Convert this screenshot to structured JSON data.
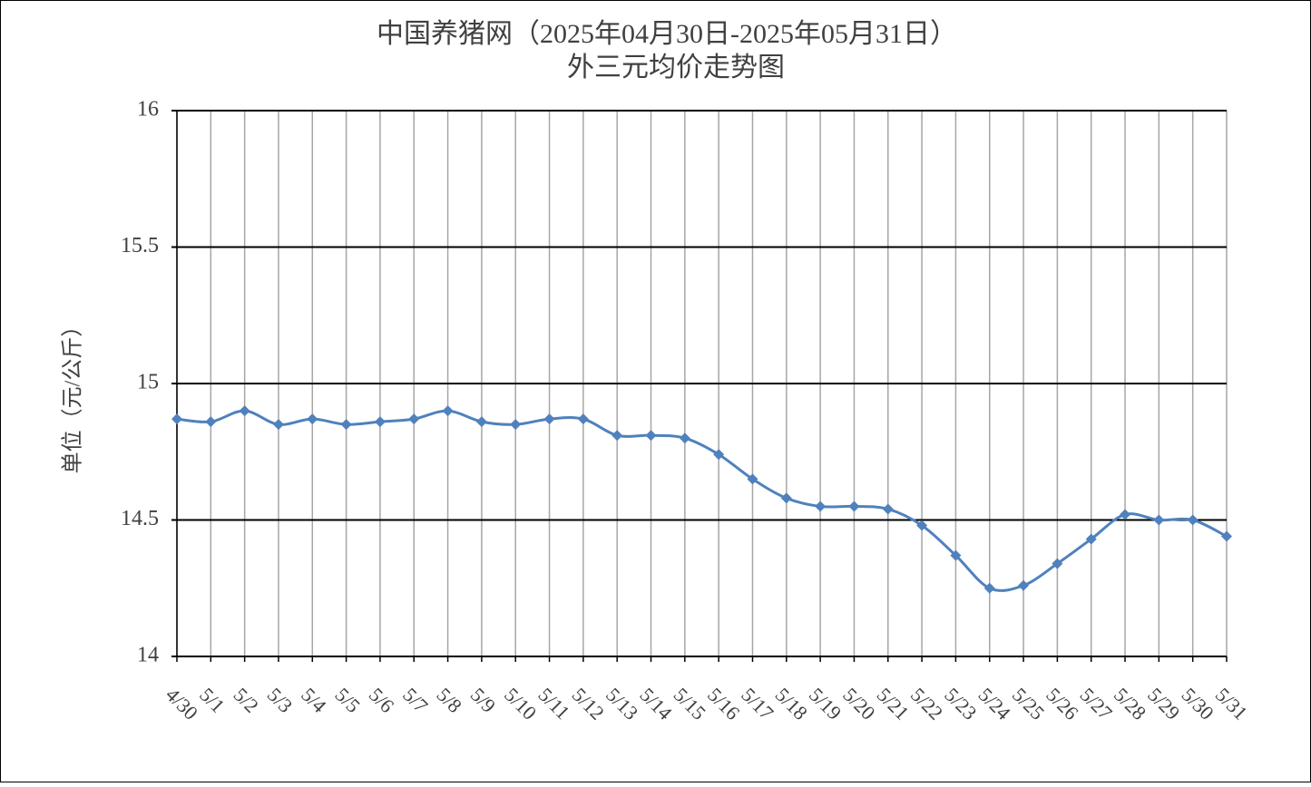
{
  "chart_data": {
    "type": "line",
    "title": "中国养猪网（2025年04月30日-2025年05月31日）",
    "subtitle": "外三元均价走势图",
    "y_label": "单位（元/公斤）",
    "categories": [
      "4/30",
      "5/1",
      "5/2",
      "5/3",
      "5/4",
      "5/5",
      "5/6",
      "5/7",
      "5/8",
      "5/9",
      "5/10",
      "5/11",
      "5/12",
      "5/13",
      "5/14",
      "5/15",
      "5/16",
      "5/17",
      "5/18",
      "5/19",
      "5/20",
      "5/21",
      "5/22",
      "5/23",
      "5/24",
      "5/25",
      "5/26",
      "5/27",
      "5/28",
      "5/29",
      "5/30",
      "5/31"
    ],
    "values": [
      14.87,
      14.86,
      14.9,
      14.85,
      14.87,
      14.85,
      14.86,
      14.87,
      14.9,
      14.86,
      14.85,
      14.87,
      14.87,
      14.81,
      14.81,
      14.8,
      14.74,
      14.65,
      14.58,
      14.55,
      14.55,
      14.54,
      14.48,
      14.37,
      14.25,
      14.26,
      14.34,
      14.43,
      14.52,
      14.5,
      14.5,
      14.44
    ],
    "color": "#4f81bd",
    "ylim": [
      14,
      16
    ],
    "yticks": [
      14,
      14.5,
      15,
      15.5,
      16
    ],
    "grid": true
  }
}
